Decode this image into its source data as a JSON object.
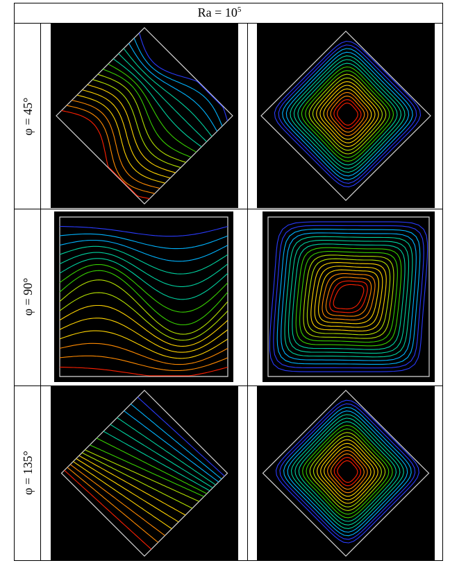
{
  "header": {
    "ra_prefix": "Ra = 10",
    "ra_exponent": "5"
  },
  "rows": [
    {
      "angle_label": "φ = 45°",
      "cavity": "diamond"
    },
    {
      "angle_label": "φ = 90°",
      "cavity": "square"
    },
    {
      "angle_label": "φ = 135°",
      "cavity": "diamond"
    }
  ],
  "columns": [
    "isotherms",
    "streamlines"
  ],
  "colors": {
    "panel_background": "#000000",
    "cavity_boundary": "#d8d8d8",
    "contour_scale": [
      "#2a3cff",
      "#00b4ff",
      "#00d2a0",
      "#38d000",
      "#b4e000",
      "#ffd400",
      "#ff8a00",
      "#ff2000"
    ]
  }
}
